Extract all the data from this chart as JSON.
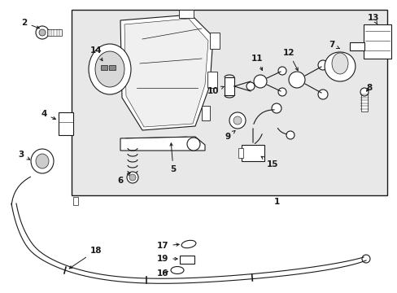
{
  "bg_color": "#ffffff",
  "box_bg": "#e8e8e8",
  "line_color": "#1a1a1a",
  "fig_width": 4.89,
  "fig_height": 3.6,
  "dpi": 100
}
